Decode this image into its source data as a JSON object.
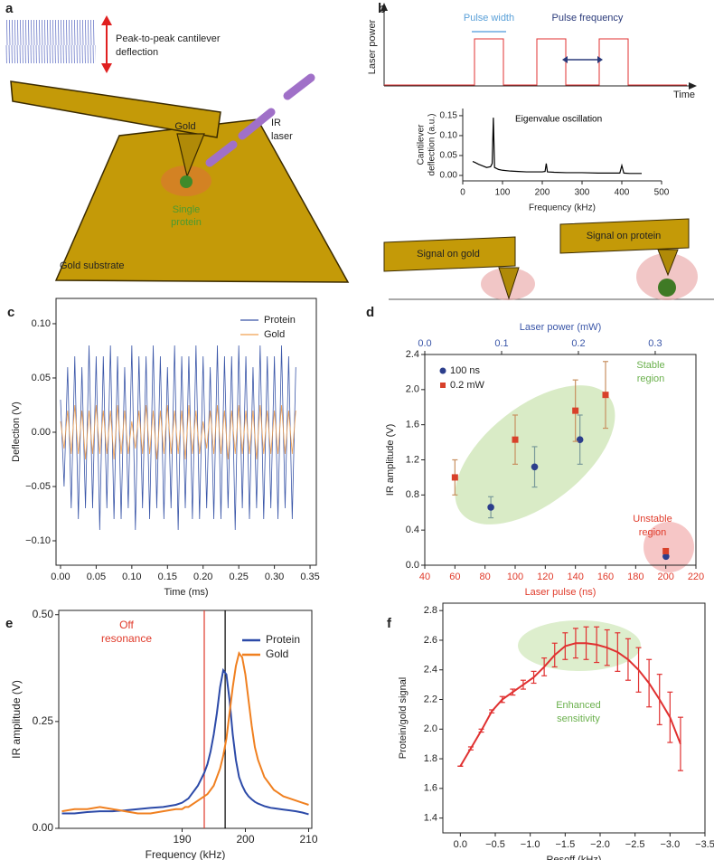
{
  "panel_labels": [
    "a",
    "b",
    "c",
    "d",
    "e",
    "f"
  ],
  "diagram_a": {
    "deflection_label": [
      "Peak-to-peak cantilever",
      "deflection"
    ],
    "cantilever": "Gold",
    "laser": [
      "IR",
      "laser"
    ],
    "protein": [
      "Single",
      "protein"
    ],
    "substrate": "Gold substrate"
  },
  "diagram_b": {
    "y_axis": "Laser power",
    "x_axis": "Time",
    "pulse_width": "Pulse width",
    "pulse_frequency": "Pulse frequency",
    "gold": "Signal on gold",
    "protein": "Signal on protein"
  },
  "chart_data": [
    {
      "type": "line",
      "xlabel": "Frequency (kHz)",
      "ylabel": [
        "Cantilever",
        "deflection (a.u.)"
      ],
      "box": false,
      "annotations": [
        {
          "text": "Eigenvalue oscillation",
          "color": "#000000"
        }
      ],
      "x": [
        25,
        30,
        40,
        50,
        60,
        70,
        74,
        77,
        80,
        90,
        100,
        120,
        140,
        160,
        180,
        200,
        207,
        210,
        213,
        230,
        260,
        300,
        340,
        380,
        395,
        400,
        405,
        420,
        450
      ],
      "series": [
        {
          "color": "#000000",
          "values": [
            0.035,
            0.033,
            0.028,
            0.024,
            0.02,
            0.022,
            0.03,
            0.145,
            0.02,
            0.015,
            0.013,
            0.011,
            0.01,
            0.009,
            0.009,
            0.009,
            0.01,
            0.03,
            0.009,
            0.008,
            0.007,
            0.007,
            0.006,
            0.006,
            0.006,
            0.025,
            0.006,
            0.005,
            0.005
          ]
        }
      ],
      "xlim": [
        0,
        500
      ],
      "xticks": [
        0,
        100,
        200,
        300,
        400,
        500
      ],
      "ylim": [
        -0.0136,
        0.168
      ],
      "yticks": [
        {
          "value": 0,
          "label": "0.00"
        },
        0.05,
        {
          "value": 0.1,
          "label": "0.10"
        },
        0.15
      ]
    },
    {
      "type": "line",
      "xlabel": "Time (ms)",
      "ylabel": "Deflection (V)",
      "box": true,
      "x": [
        0,
        0.005,
        0.01,
        0.015,
        0.02,
        0.025,
        0.03,
        0.035,
        0.04,
        0.045,
        0.05,
        0.055,
        0.06,
        0.065,
        0.07,
        0.075,
        0.08,
        0.085,
        0.09,
        0.095,
        0.1,
        0.105,
        0.11,
        0.115,
        0.12,
        0.125,
        0.13,
        0.135,
        0.14,
        0.145,
        0.15,
        0.155,
        0.16,
        0.165,
        0.17,
        0.175,
        0.18,
        0.185,
        0.19,
        0.195,
        0.2,
        0.205,
        0.21,
        0.215,
        0.22,
        0.225,
        0.23,
        0.235,
        0.24,
        0.245,
        0.25,
        0.255,
        0.26,
        0.265,
        0.27,
        0.275,
        0.28,
        0.285,
        0.29,
        0.295,
        0.3,
        0.305,
        0.31,
        0.315,
        0.32,
        0.325,
        0.33
      ],
      "series": [
        {
          "name": "Protein",
          "color": "#3a56a8",
          "values": [
            0.03,
            -0.05,
            0.06,
            -0.07,
            0.07,
            -0.08,
            0.06,
            -0.07,
            0.08,
            -0.07,
            0.07,
            -0.09,
            0.07,
            -0.07,
            0.08,
            -0.08,
            0.07,
            -0.08,
            0.06,
            -0.07,
            0.08,
            -0.09,
            0.07,
            -0.07,
            0.07,
            -0.08,
            0.08,
            -0.07,
            0.07,
            -0.08,
            0.06,
            -0.07,
            0.08,
            -0.09,
            0.07,
            -0.07,
            0.07,
            -0.08,
            0.08,
            -0.08,
            0.07,
            -0.07,
            0.06,
            -0.08,
            0.08,
            -0.08,
            0.07,
            -0.07,
            0.07,
            -0.09,
            0.08,
            -0.07,
            0.07,
            -0.08,
            0.06,
            -0.07,
            0.08,
            -0.08,
            0.07,
            -0.07,
            0.07,
            -0.08,
            0.08,
            -0.07,
            0.07,
            -0.08,
            0.06
          ]
        },
        {
          "name": "Gold",
          "color": "#f0a050",
          "values": [
            0.01,
            -0.015,
            0.02,
            -0.02,
            0.025,
            -0.02,
            0.02,
            -0.025,
            0.02,
            -0.02,
            0.025,
            -0.02,
            0.02,
            -0.02,
            0.02,
            -0.025,
            0.025,
            -0.02,
            0.02,
            -0.02,
            0.01,
            -0.015,
            0.02,
            -0.02,
            0.025,
            -0.02,
            0.02,
            -0.025,
            0.02,
            -0.02,
            0.025,
            -0.02,
            0.02,
            -0.02,
            0.02,
            -0.025,
            0.025,
            -0.02,
            0.02,
            -0.02,
            0.01,
            -0.015,
            0.02,
            -0.02,
            0.025,
            -0.02,
            0.02,
            -0.025,
            0.02,
            -0.02,
            0.025,
            -0.02,
            0.02,
            -0.02,
            0.02,
            -0.025,
            0.025,
            -0.02,
            0.02,
            -0.02,
            0.02,
            -0.02,
            0.025,
            -0.02,
            0.02,
            -0.02,
            0.02
          ]
        }
      ],
      "xlim": [
        -0.0063,
        0.3588
      ],
      "xticks": [
        {
          "value": 0,
          "label": "0.00"
        },
        0.05,
        {
          "value": 0.1,
          "label": "0.10"
        },
        0.15,
        {
          "value": 0.2,
          "label": "0.20"
        },
        0.25,
        {
          "value": 0.3,
          "label": "0.30"
        },
        0.35
      ],
      "ylim": [
        -0.1225,
        0.1233
      ],
      "yticks": [
        {
          "value": -0.1,
          "label": "−0.10"
        },
        {
          "value": -0.05,
          "label": "−0.05"
        },
        {
          "value": 0,
          "label": "0.00"
        },
        0.05,
        {
          "value": 0.1,
          "label": "0.10"
        }
      ]
    },
    {
      "type": "scatter",
      "xlabel": "Laser pulse (ns)",
      "x2label": "Laser power (mW)",
      "ylabel": "IR amplitude (V)",
      "box": true,
      "xcolor": "#e03a2a",
      "x2color": "#3a56a8",
      "annotations": [
        {
          "text": [
            "Stable",
            "region"
          ],
          "color": "#6ab04c"
        },
        {
          "text": [
            "Unstable",
            "region"
          ],
          "color": "#e03a2a"
        }
      ],
      "series": [
        {
          "name": "100 ns",
          "color": "#2c3e8c",
          "marker": "circle",
          "axis": "x2",
          "error_color": "#7a9a9a",
          "x": [
            0.086,
            0.143,
            0.202,
            0.314
          ],
          "values": [
            0.66,
            1.12,
            1.43,
            0.1
          ],
          "errors": [
            0.12,
            0.23,
            0.28,
            0.02
          ]
        },
        {
          "name": "0.2 mW",
          "color": "#d8402a",
          "marker": "square",
          "error_color": "#c89060",
          "x": [
            60,
            100,
            140,
            160,
            200
          ],
          "values": [
            1.0,
            1.43,
            1.76,
            1.94,
            0.16
          ],
          "errors": [
            0.2,
            0.28,
            0.35,
            0.38,
            0.02
          ]
        }
      ],
      "xlim": [
        40,
        220
      ],
      "xticks": [
        40,
        60,
        80,
        100,
        120,
        140,
        160,
        180,
        200,
        220
      ],
      "x2lim": [
        0,
        0.353
      ],
      "x2ticks": [
        {
          "value": 0,
          "label": "0.0"
        },
        0.1,
        0.2,
        0.3
      ],
      "ylim": [
        0,
        2.4
      ],
      "yticks": [
        {
          "value": 0,
          "label": "0.0"
        },
        0.4,
        0.8,
        1.2,
        1.6,
        {
          "value": 2,
          "label": "2.0"
        },
        2.4
      ]
    },
    {
      "type": "line",
      "xlabel": "Frequency (kHz)",
      "ylabel": "IR amplitude (V)",
      "box": true,
      "annotations": [
        {
          "text": [
            "Off",
            "resonance"
          ],
          "color": "#e03a2a"
        }
      ],
      "vlines": [
        {
          "x": 193.5,
          "color": "#e03a2a"
        },
        {
          "x": 196.8,
          "color": "#000000"
        }
      ],
      "x": [
        171,
        173,
        175,
        177,
        179,
        181,
        183,
        185,
        187,
        189,
        190,
        190.5,
        191,
        191.5,
        192,
        192.5,
        193,
        193.5,
        194,
        194.5,
        195,
        195.5,
        196,
        196.5,
        197,
        197.5,
        198,
        198.5,
        199,
        199.5,
        200,
        200.5,
        201,
        201.5,
        202,
        202.5,
        203,
        203.5,
        204,
        204.5,
        205,
        206,
        207,
        208,
        209,
        210
      ],
      "series": [
        {
          "name": "Protein",
          "color": "#2c4aa8",
          "values": [
            0.035,
            0.035,
            0.038,
            0.04,
            0.04,
            0.042,
            0.045,
            0.048,
            0.05,
            0.055,
            0.06,
            0.065,
            0.07,
            0.08,
            0.09,
            0.1,
            0.115,
            0.13,
            0.15,
            0.18,
            0.22,
            0.27,
            0.33,
            0.37,
            0.36,
            0.3,
            0.22,
            0.16,
            0.12,
            0.1,
            0.085,
            0.075,
            0.068,
            0.062,
            0.058,
            0.055,
            0.052,
            0.05,
            0.048,
            0.047,
            0.046,
            0.044,
            0.042,
            0.04,
            0.037,
            0.033
          ]
        },
        {
          "name": "Gold",
          "color": "#f08020",
          "values": [
            0.04,
            0.045,
            0.045,
            0.05,
            0.045,
            0.04,
            0.035,
            0.035,
            0.04,
            0.045,
            0.045,
            0.05,
            0.05,
            0.055,
            0.06,
            0.065,
            0.07,
            0.075,
            0.08,
            0.09,
            0.1,
            0.12,
            0.14,
            0.17,
            0.21,
            0.27,
            0.33,
            0.38,
            0.41,
            0.4,
            0.36,
            0.3,
            0.24,
            0.19,
            0.16,
            0.14,
            0.12,
            0.11,
            0.1,
            0.09,
            0.085,
            0.075,
            0.07,
            0.065,
            0.06,
            0.055
          ]
        }
      ],
      "xlim": [
        170.5,
        210.5
      ],
      "xticks": [
        190,
        200,
        210
      ],
      "ylim": [
        0,
        0.51
      ],
      "yticks": [
        {
          "value": 0,
          "label": "0.00"
        },
        0.25,
        {
          "value": 0.5,
          "label": "0.50"
        }
      ]
    },
    {
      "type": "line",
      "xlabel": "Resoff (kHz)",
      "ylabel": "Protein/gold signal",
      "box": true,
      "annotations": [
        {
          "text": [
            "Enhanced",
            "sensitivity"
          ],
          "color": "#6ab04c"
        }
      ],
      "x": [
        0,
        -0.15,
        -0.3,
        -0.45,
        -0.6,
        -0.75,
        -0.9,
        -1.05,
        -1.2,
        -1.35,
        -1.5,
        -1.65,
        -1.8,
        -1.95,
        -2.1,
        -2.25,
        -2.4,
        -2.55,
        -2.7,
        -2.85,
        -3,
        -3.15
      ],
      "series": [
        {
          "color": "#e03030",
          "values": [
            1.75,
            1.87,
            1.99,
            2.12,
            2.2,
            2.25,
            2.3,
            2.35,
            2.42,
            2.5,
            2.56,
            2.58,
            2.58,
            2.57,
            2.55,
            2.52,
            2.47,
            2.4,
            2.31,
            2.2,
            2.08,
            1.9
          ],
          "errors": [
            0,
            0.01,
            0.01,
            0.01,
            0.02,
            0.02,
            0.03,
            0.04,
            0.06,
            0.08,
            0.09,
            0.1,
            0.11,
            0.12,
            0.12,
            0.13,
            0.14,
            0.15,
            0.16,
            0.17,
            0.17,
            0.18
          ]
        }
      ],
      "xlim": [
        0.25,
        -3.5
      ],
      "xticks": [
        {
          "value": 0,
          "label": "0.0"
        },
        {
          "value": -0.5,
          "label": "−0.5"
        },
        {
          "value": -1,
          "label": "−1.0"
        },
        {
          "value": -1.5,
          "label": "−1.5"
        },
        {
          "value": -2,
          "label": "−2.0"
        },
        {
          "value": -2.5,
          "label": "−2.5"
        },
        {
          "value": -3,
          "label": "−3.0"
        },
        {
          "value": -3.5,
          "label": "−3.5"
        }
      ],
      "ylim": [
        1.3,
        2.85
      ],
      "yticks": [
        1.4,
        1.6,
        1.8,
        {
          "value": 2,
          "label": "2.0"
        },
        2.2,
        2.4,
        2.6,
        2.8
      ]
    }
  ]
}
